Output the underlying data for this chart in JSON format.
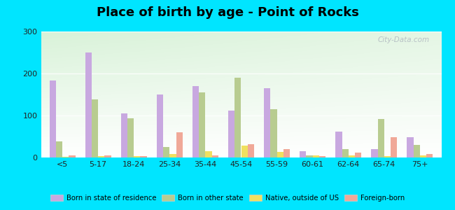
{
  "title": "Place of birth by age - Point of Rocks",
  "categories": [
    "<5",
    "5-17",
    "18-24",
    "25-34",
    "35-44",
    "45-54",
    "55-59",
    "60-61",
    "62-64",
    "65-74",
    "75+"
  ],
  "series": {
    "Born in state of residence": [
      183,
      250,
      105,
      150,
      170,
      112,
      165,
      15,
      62,
      20,
      48
    ],
    "Born in other state": [
      38,
      138,
      94,
      25,
      155,
      190,
      115,
      5,
      20,
      91,
      30
    ],
    "Native, outside of US": [
      2,
      3,
      3,
      8,
      15,
      28,
      13,
      5,
      5,
      3,
      5
    ],
    "Foreign-born": [
      5,
      5,
      4,
      60,
      5,
      32,
      20,
      3,
      12,
      48,
      8
    ]
  },
  "colors": {
    "Born in state of residence": "#c8a8e0",
    "Born in other state": "#b8cc90",
    "Native, outside of US": "#f0e060",
    "Foreign-born": "#f0a898"
  },
  "ylim": [
    0,
    300
  ],
  "yticks": [
    0,
    100,
    200,
    300
  ],
  "outer_bg": "#00e5ff",
  "title_fontsize": 13,
  "watermark": "City-Data.com"
}
